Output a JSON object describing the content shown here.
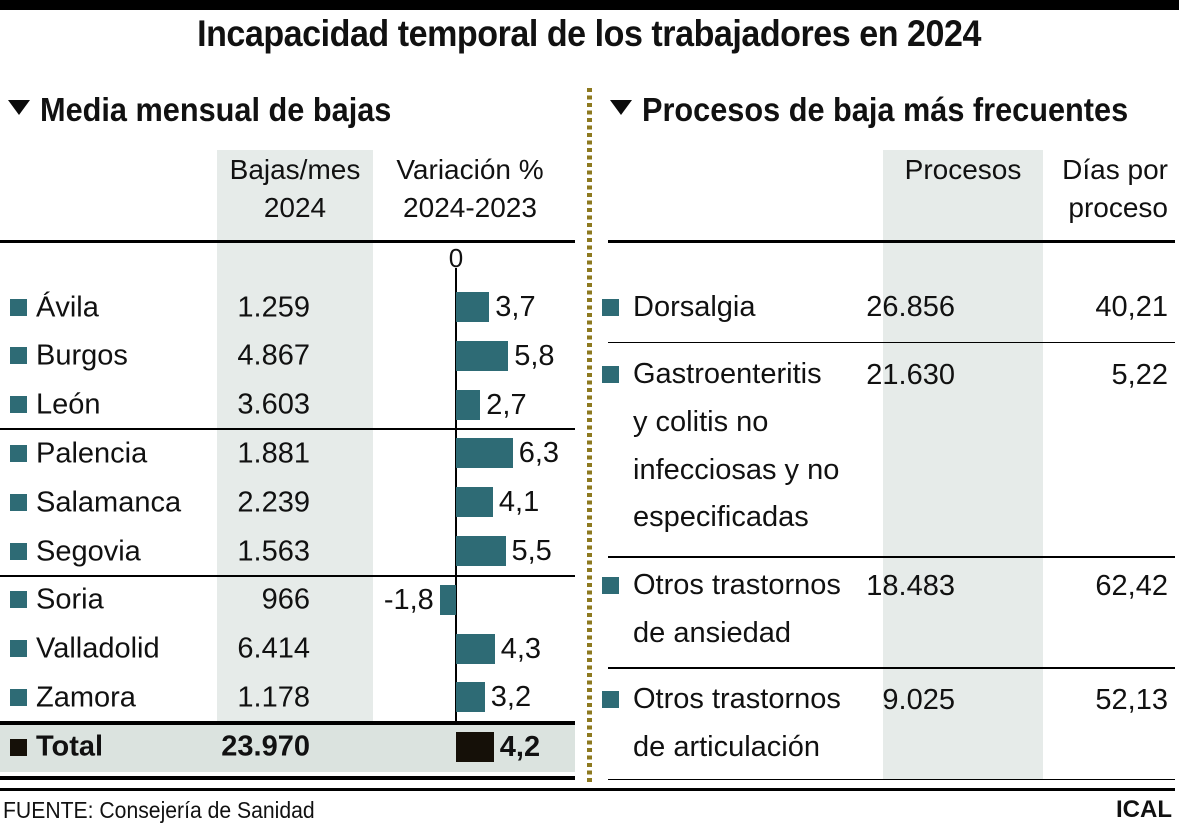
{
  "title": "Incapacidad temporal de los trabajadores en 2024",
  "colors": {
    "bar_teal": "#2e6b75",
    "total_black": "#151008",
    "column_highlight": "#e6ebe9",
    "total_row_bg": "#dbe3df",
    "divider_olive": "#8d791f"
  },
  "left": {
    "heading": "Media mensual de bajas",
    "headers": {
      "col_bajas_l1": "Bajas/mes",
      "col_bajas_l2": "2024",
      "col_var_l1": "Variación %",
      "col_var_l2": "2024-2023"
    },
    "axis_zero": "0",
    "rows": [
      {
        "name": "Ávila",
        "bajas": "1.259",
        "var_label": "3,7",
        "var": 3.7
      },
      {
        "name": "Burgos",
        "bajas": "4.867",
        "var_label": "5,8",
        "var": 5.8
      },
      {
        "name": "León",
        "bajas": "3.603",
        "var_label": "2,7",
        "var": 2.7
      },
      {
        "name": "Palencia",
        "bajas": "1.881",
        "var_label": "6,3",
        "var": 6.3
      },
      {
        "name": "Salamanca",
        "bajas": "2.239",
        "var_label": "4,1",
        "var": 4.1
      },
      {
        "name": "Segovia",
        "bajas": "1.563",
        "var_label": "5,5",
        "var": 5.5
      },
      {
        "name": "Soria",
        "bajas": "966",
        "var_label": "-1,8",
        "var": -1.8
      },
      {
        "name": "Valladolid",
        "bajas": "6.414",
        "var_label": "4,3",
        "var": 4.3
      },
      {
        "name": "Zamora",
        "bajas": "1.178",
        "var_label": "3,2",
        "var": 3.2
      }
    ],
    "total": {
      "name": "Total",
      "bajas": "23.970",
      "var_label": "4,2",
      "var": 4.2
    }
  },
  "right": {
    "heading": "Procesos de baja más frecuentes",
    "headers": {
      "col_procesos": "Procesos",
      "col_dias_l1": "Días por",
      "col_dias_l2": "proceso"
    },
    "rows": [
      {
        "lines": [
          "Dorsalgia"
        ],
        "procesos": "26.856",
        "dias": "40,21"
      },
      {
        "lines": [
          "Gastroenteritis",
          "y colitis no",
          "infecciosas y no",
          "especificadas"
        ],
        "procesos": "21.630",
        "dias": "5,22"
      },
      {
        "lines": [
          "Otros trastornos",
          "de ansiedad"
        ],
        "procesos": "18.483",
        "dias": "62,42"
      },
      {
        "lines": [
          "Otros trastornos",
          "de articulación"
        ],
        "procesos": "9.025",
        "dias": "52,13"
      }
    ]
  },
  "footer": {
    "source": "FUENTE: Consejería de Sanidad",
    "credit": "ICAL"
  },
  "chart_data": [
    {
      "type": "bar",
      "orientation": "horizontal",
      "title": "Media mensual de bajas — Variación % 2024-2023",
      "categories": [
        "Ávila",
        "Burgos",
        "León",
        "Palencia",
        "Salamanca",
        "Segovia",
        "Soria",
        "Valladolid",
        "Zamora",
        "Total"
      ],
      "series": [
        {
          "name": "Bajas/mes 2024",
          "values": [
            1259,
            4867,
            3603,
            1881,
            2239,
            1563,
            966,
            6414,
            1178,
            23970
          ]
        },
        {
          "name": "Variación % 2024-2023",
          "values": [
            3.7,
            5.8,
            2.7,
            6.3,
            4.1,
            5.5,
            -1.8,
            4.3,
            3.2,
            4.2
          ]
        }
      ],
      "axis_zero_label": "0",
      "legend_position": "none",
      "grid": false,
      "bar_color": "#2e6b75",
      "total_bar_color": "#151008"
    },
    {
      "type": "table",
      "title": "Procesos de baja más frecuentes",
      "columns": [
        "Proceso",
        "Procesos",
        "Días por proceso"
      ],
      "rows": [
        [
          "Dorsalgia",
          26856,
          40.21
        ],
        [
          "Gastroenteritis y colitis no infecciosas y no especificadas",
          21630,
          5.22
        ],
        [
          "Otros trastornos de ansiedad",
          18483,
          62.42
        ],
        [
          "Otros trastornos de articulación",
          9025,
          52.13
        ]
      ]
    }
  ]
}
